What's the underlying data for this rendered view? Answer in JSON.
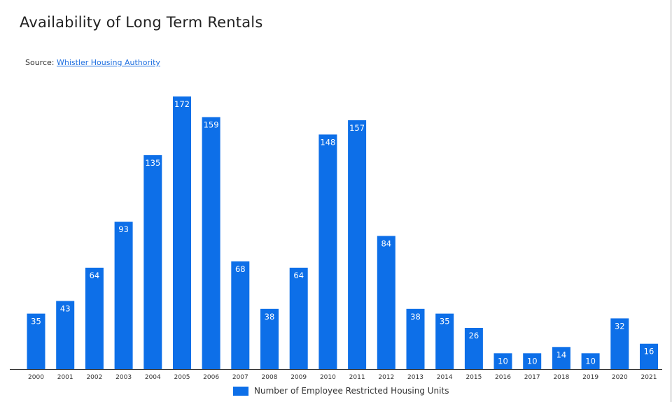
{
  "header": {
    "title": "Availability of Long Term Rentals",
    "source_prefix": "Source: ",
    "source_link": "Whistler Housing Authority"
  },
  "chart_data": {
    "type": "bar",
    "categories": [
      "2000",
      "2001",
      "2002",
      "2003",
      "2004",
      "2005",
      "2006",
      "2007",
      "2008",
      "2009",
      "2010",
      "2011",
      "2012",
      "2013",
      "2014",
      "2015",
      "2016",
      "2017",
      "2018",
      "2019",
      "2020",
      "2021"
    ],
    "series": [
      {
        "name": "Number of Employee Restricted Housing Units",
        "values": [
          35,
          43,
          64,
          93,
          135,
          172,
          159,
          68,
          38,
          64,
          148,
          157,
          84,
          38,
          35,
          26,
          10,
          10,
          14,
          10,
          32,
          16
        ]
      }
    ],
    "ylim": [
      0,
      172
    ],
    "grid": false,
    "legend": "bottom-center",
    "data_labels": true,
    "colors": {
      "bar": "#0d6fe8"
    }
  }
}
